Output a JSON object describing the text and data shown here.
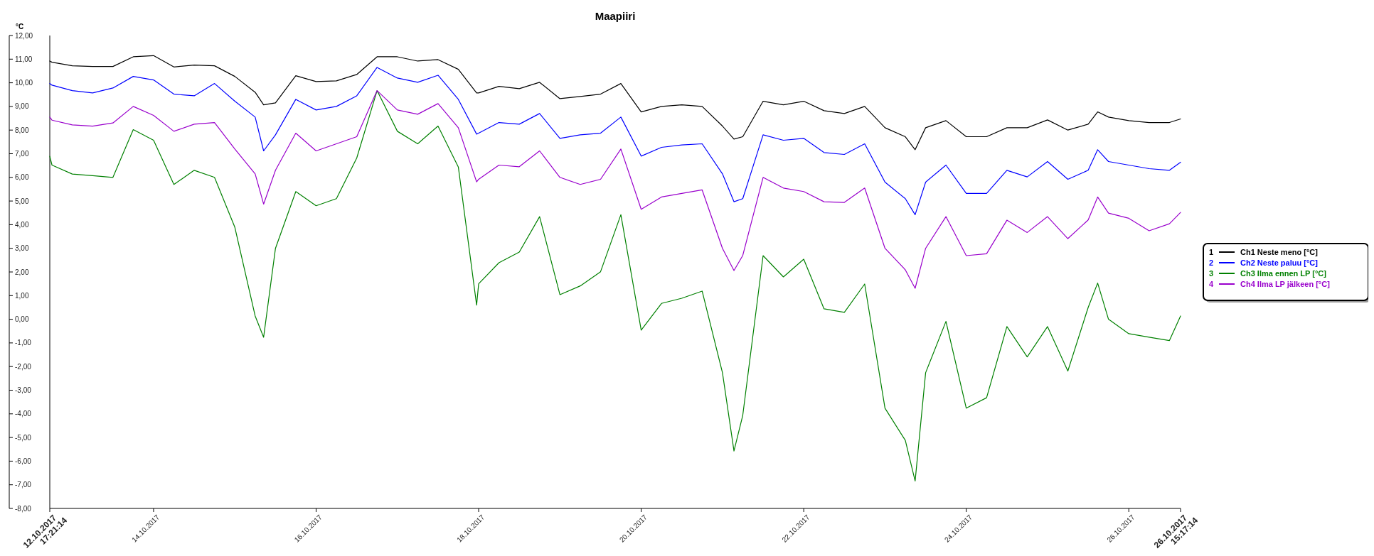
{
  "chart_data": {
    "type": "line",
    "title": "Maapiiri",
    "annotations": [
      "1",
      "2",
      "3",
      "4"
    ],
    "ylabel": "°C",
    "legend": "right",
    "grid": false,
    "x": [
      "2017-10-12T17:21",
      "2017-10-12T18:00",
      "2017-10-13T00:00",
      "2017-10-13T06:00",
      "2017-10-13T12:00",
      "2017-10-13T18:00",
      "2017-10-14T00:00",
      "2017-10-14T06:00",
      "2017-10-14T12:00",
      "2017-10-14T18:00",
      "2017-10-15T00:00",
      "2017-10-15T06:00",
      "2017-10-15T08:30",
      "2017-10-15T12:00",
      "2017-10-15T18:00",
      "2017-10-16T00:00",
      "2017-10-16T06:00",
      "2017-10-16T12:00",
      "2017-10-16T18:00",
      "2017-10-17T00:00",
      "2017-10-17T06:00",
      "2017-10-17T12:00",
      "2017-10-17T18:00",
      "2017-10-17T23:24",
      "2017-10-18T00:00",
      "2017-10-18T06:00",
      "2017-10-18T12:00",
      "2017-10-18T18:00",
      "2017-10-19T00:00",
      "2017-10-19T06:00",
      "2017-10-19T12:00",
      "2017-10-19T18:00",
      "2017-10-20T00:00",
      "2017-10-20T06:00",
      "2017-10-20T12:00",
      "2017-10-20T18:00",
      "2017-10-21T00:00",
      "2017-10-21T03:24",
      "2017-10-21T06:00",
      "2017-10-21T12:00",
      "2017-10-21T18:00",
      "2017-10-22T00:00",
      "2017-10-22T06:00",
      "2017-10-22T12:00",
      "2017-10-22T18:00",
      "2017-10-23T00:00",
      "2017-10-23T06:00",
      "2017-10-23T08:54",
      "2017-10-23T12:00",
      "2017-10-23T18:00",
      "2017-10-24T00:00",
      "2017-10-24T06:00",
      "2017-10-24T12:00",
      "2017-10-24T18:00",
      "2017-10-25T00:00",
      "2017-10-25T06:00",
      "2017-10-25T12:00",
      "2017-10-25T14:48",
      "2017-10-25T18:00",
      "2017-10-26T00:00",
      "2017-10-26T06:00",
      "2017-10-26T12:00",
      "2017-10-26T15:17"
    ],
    "series": [
      {
        "name": "Ch1 Neste meno [°C]",
        "color": "#000000",
        "values": [
          10.92,
          10.87,
          10.72,
          10.69,
          10.69,
          11.1,
          11.15,
          10.67,
          10.75,
          10.72,
          10.27,
          9.6,
          9.07,
          9.15,
          10.3,
          10.05,
          10.08,
          10.35,
          11.1,
          11.1,
          10.92,
          10.98,
          10.57,
          9.57,
          9.57,
          9.85,
          9.75,
          10.02,
          9.33,
          9.42,
          9.52,
          9.97,
          8.77,
          9.0,
          9.07,
          9.0,
          8.17,
          7.62,
          7.72,
          9.22,
          9.07,
          9.22,
          8.82,
          8.7,
          9.0,
          8.1,
          7.72,
          7.17,
          8.1,
          8.4,
          7.72,
          7.72,
          8.1,
          8.1,
          8.43,
          8.0,
          8.25,
          8.77,
          8.55,
          8.4,
          8.32,
          8.32,
          8.47
        ]
      },
      {
        "name": "Ch2 Neste paluu [°C]",
        "color": "#0000ff",
        "values": [
          9.97,
          9.9,
          9.67,
          9.57,
          9.78,
          10.27,
          10.12,
          9.52,
          9.45,
          9.97,
          9.22,
          8.55,
          7.12,
          7.8,
          9.3,
          8.85,
          9.0,
          9.45,
          10.65,
          10.2,
          10.02,
          10.32,
          9.3,
          7.83,
          7.87,
          8.32,
          8.25,
          8.7,
          7.65,
          7.8,
          7.87,
          8.55,
          6.9,
          7.27,
          7.37,
          7.42,
          6.15,
          4.97,
          5.1,
          7.8,
          7.57,
          7.65,
          7.05,
          6.97,
          7.42,
          5.8,
          5.1,
          4.42,
          5.8,
          6.52,
          5.32,
          5.32,
          6.3,
          6.02,
          6.67,
          5.92,
          6.3,
          7.17,
          6.67,
          6.52,
          6.37,
          6.3,
          6.64
        ]
      },
      {
        "name": "Ch3 Ilma ennen LP [°C]",
        "color": "#008000",
        "values": [
          6.89,
          6.52,
          6.14,
          6.07,
          6.0,
          8.02,
          7.57,
          5.7,
          6.3,
          6.0,
          3.89,
          0.14,
          -0.76,
          3.0,
          5.4,
          4.8,
          5.1,
          6.82,
          9.67,
          7.95,
          7.42,
          8.17,
          6.44,
          0.6,
          1.5,
          2.39,
          2.84,
          4.34,
          1.04,
          1.41,
          2.01,
          4.42,
          -0.46,
          0.67,
          0.89,
          1.19,
          -2.26,
          -5.57,
          -4.06,
          2.69,
          1.79,
          2.54,
          0.44,
          0.29,
          1.49,
          -3.76,
          -5.12,
          -6.84,
          -2.26,
          -0.09,
          -3.76,
          -3.32,
          -0.31,
          -1.59,
          -0.31,
          -2.19,
          0.5,
          1.53,
          0.0,
          -0.61,
          -0.76,
          -0.9,
          0.14
        ]
      },
      {
        "name": "Ch4 Ilma LP jälkeen [°C]",
        "color": "#9900cc",
        "values": [
          8.55,
          8.42,
          8.22,
          8.17,
          8.3,
          9.0,
          8.62,
          7.95,
          8.25,
          8.32,
          7.2,
          6.15,
          4.87,
          6.3,
          7.87,
          7.12,
          7.42,
          7.72,
          9.67,
          8.85,
          8.67,
          9.12,
          8.1,
          5.81,
          5.92,
          6.52,
          6.45,
          7.12,
          6.0,
          5.7,
          5.92,
          7.2,
          4.65,
          5.17,
          5.32,
          5.47,
          3.0,
          2.06,
          2.7,
          6.0,
          5.55,
          5.4,
          4.97,
          4.94,
          5.55,
          3.0,
          2.09,
          1.31,
          3.0,
          4.34,
          2.69,
          2.77,
          4.19,
          3.67,
          4.34,
          3.41,
          4.2,
          5.17,
          4.49,
          4.27,
          3.74,
          4.04,
          4.52
        ]
      }
    ],
    "xlim": [
      "2017-10-12T17:21",
      "2017-10-26T15:17"
    ],
    "xticks": [
      {
        "value": "2017-10-12T17:21",
        "label": "12.10.2017\n17:21:14"
      },
      {
        "value": "2017-10-14",
        "label": "14.10.2017"
      },
      {
        "value": "2017-10-16",
        "label": "16.10.2017"
      },
      {
        "value": "2017-10-18",
        "label": "18.10.2017"
      },
      {
        "value": "2017-10-20",
        "label": "20.10.2017"
      },
      {
        "value": "2017-10-22",
        "label": "22.10.2017"
      },
      {
        "value": "2017-10-24",
        "label": "24.10.2017"
      },
      {
        "value": "2017-10-26",
        "label": "26.10.2017"
      },
      {
        "value": "2017-10-26T15:17",
        "label": "26.10.2017\n15:17:14"
      }
    ],
    "ylim": [
      -8,
      12
    ],
    "yticks": [
      {
        "value": 12,
        "label": "12,00"
      },
      {
        "value": 11,
        "label": "11,00"
      },
      {
        "value": 10,
        "label": "10,00"
      },
      {
        "value": 9,
        "label": "9,00"
      },
      {
        "value": 8,
        "label": "8,00"
      },
      {
        "value": 7,
        "label": "7,00"
      },
      {
        "value": 6,
        "label": "6,00"
      },
      {
        "value": 5,
        "label": "5,00"
      },
      {
        "value": 4,
        "label": "4,00"
      },
      {
        "value": 3,
        "label": "3,00"
      },
      {
        "value": 2,
        "label": "2,00"
      },
      {
        "value": 1,
        "label": "1,00"
      },
      {
        "value": 0,
        "label": "0,00"
      },
      {
        "value": -1,
        "label": "-1,00"
      },
      {
        "value": -2,
        "label": "-2,00"
      },
      {
        "value": -3,
        "label": "-3,00"
      },
      {
        "value": -4,
        "label": "-4,00"
      },
      {
        "value": -5,
        "label": "-5,00"
      },
      {
        "value": -6,
        "label": "-6,00"
      },
      {
        "value": -7,
        "label": "-7,00"
      },
      {
        "value": -8,
        "label": "-8,00"
      }
    ]
  }
}
